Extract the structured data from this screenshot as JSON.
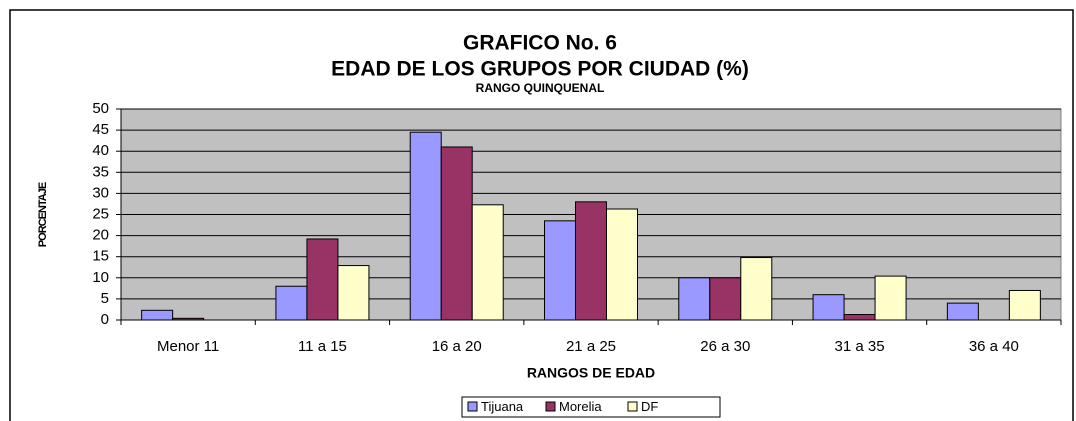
{
  "chart_data": {
    "type": "bar",
    "title": "GRAFICO No. 6",
    "subtitle": "EDAD DE LOS GRUPOS POR CIUDAD  (%)",
    "note": "RANGO QUINQUENAL",
    "x_label": "RANGOS DE EDAD",
    "y_label": "PORCENTAJE",
    "categories": [
      "Menor 11",
      "11 a 15",
      "16 a 20",
      "21 a 25",
      "26 a 30",
      "31 a 35",
      "36 a 40"
    ],
    "series": [
      {
        "name": "Tijuana",
        "color": "#9999ff",
        "values": [
          2.3,
          8,
          44.5,
          23.5,
          10,
          6,
          4
        ]
      },
      {
        "name": "Morelia",
        "color": "#993366",
        "values": [
          0.4,
          19.2,
          41,
          28,
          10,
          1.3,
          0
        ]
      },
      {
        "name": "DF",
        "color": "#ffffcc",
        "values": [
          0,
          12.9,
          27.3,
          26.3,
          14.8,
          10.4,
          7
        ]
      }
    ],
    "ylim": [
      0,
      50
    ],
    "yticks": [
      0,
      5,
      10,
      15,
      20,
      25,
      30,
      35,
      40,
      45,
      50
    ],
    "grid": true,
    "legend": "bottom"
  }
}
